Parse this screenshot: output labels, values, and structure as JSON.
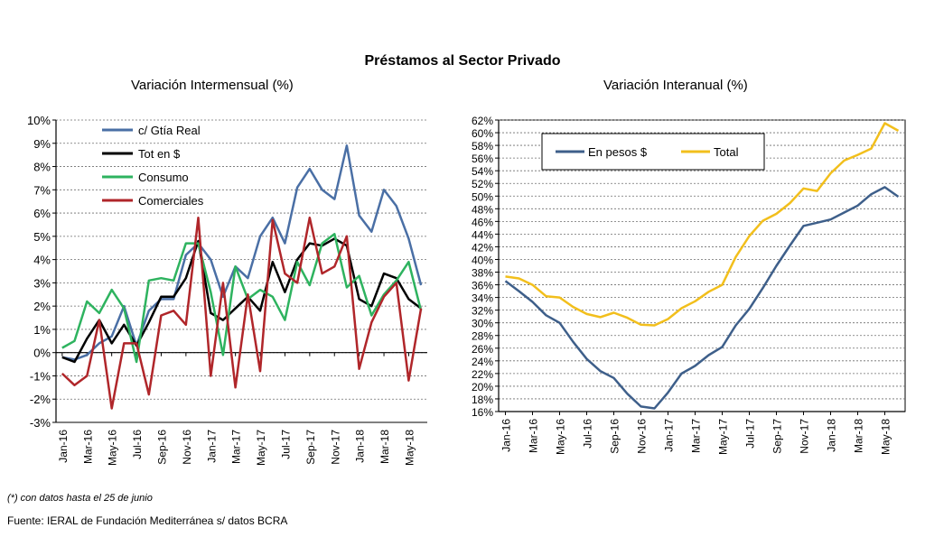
{
  "title": "Préstamos al Sector Privado",
  "note": "(*) con datos hasta el 25 de junio",
  "source": "Fuente: IERAL de Fundación Mediterránea s/ datos BCRA",
  "chart_data": [
    {
      "type": "line",
      "title": "Variación Intermensual (%)",
      "xlabel": "",
      "ylabel": "",
      "ylim": [
        -3,
        10
      ],
      "y_ticks": [
        "10%",
        "9%",
        "8%",
        "7%",
        "6%",
        "5%",
        "4%",
        "3%",
        "2%",
        "1%",
        "0%",
        "-1%",
        "-2%",
        "-3%"
      ],
      "x": [
        "Jan-16",
        "Feb-16",
        "Mar-16",
        "Apr-16",
        "May-16",
        "Jun-16",
        "Jul-16",
        "Aug-16",
        "Sep-16",
        "Oct-16",
        "Nov-16",
        "Dec-16",
        "Jan-17",
        "Feb-17",
        "Mar-17",
        "Apr-17",
        "May-17",
        "Jun-17",
        "Jul-17",
        "Aug-17",
        "Sep-17",
        "Oct-17",
        "Nov-17",
        "Dec-17",
        "Jan-18",
        "Feb-18",
        "Mar-18",
        "Apr-18",
        "May-18",
        "Jun-18"
      ],
      "x_tick_labels": [
        "Jan-16",
        "Mar-16",
        "May-16",
        "Jul-16",
        "Sep-16",
        "Nov-16",
        "Jan-17",
        "Mar-17",
        "May-17",
        "Jul-17",
        "Sep-17",
        "Nov-17",
        "Jan-18",
        "Mar-18",
        "May-18"
      ],
      "grid": true,
      "legend_position": "top-left",
      "series": [
        {
          "name": "c/ Gtía Real",
          "color": "#4a6fa5",
          "values": [
            -0.2,
            -0.3,
            -0.1,
            0.4,
            0.7,
            2.0,
            0.3,
            1.8,
            2.3,
            2.3,
            4.2,
            4.7,
            4.0,
            2.4,
            3.7,
            3.2,
            5.0,
            5.8,
            4.7,
            7.1,
            7.9,
            7.0,
            6.6,
            8.9,
            5.9,
            5.2,
            7.0,
            6.3,
            4.9,
            2.9
          ]
        },
        {
          "name": "Tot en $",
          "color": "#000000",
          "values": [
            -0.2,
            -0.4,
            0.6,
            1.4,
            0.4,
            1.2,
            0.3,
            1.3,
            2.4,
            2.4,
            3.2,
            4.8,
            1.7,
            1.4,
            1.9,
            2.4,
            1.8,
            3.9,
            2.6,
            4.0,
            4.7,
            4.6,
            4.9,
            4.6,
            2.3,
            2.0,
            3.4,
            3.2,
            2.3,
            1.9
          ]
        },
        {
          "name": "Consumo",
          "color": "#2eb35f",
          "values": [
            0.2,
            0.5,
            2.2,
            1.7,
            2.7,
            1.9,
            -0.4,
            3.1,
            3.2,
            3.1,
            4.7,
            4.7,
            2.6,
            -0.1,
            3.7,
            2.3,
            2.7,
            2.4,
            1.4,
            3.9,
            2.9,
            4.7,
            5.1,
            2.8,
            3.3,
            1.6,
            2.5,
            3.1,
            3.9,
            1.8
          ]
        },
        {
          "name": "Comerciales",
          "color": "#b0262a",
          "values": [
            -0.9,
            -1.4,
            -1.0,
            1.4,
            -2.4,
            0.4,
            0.4,
            -1.8,
            1.6,
            1.8,
            1.2,
            5.8,
            -1.0,
            3.0,
            -1.5,
            2.5,
            -0.8,
            5.7,
            3.4,
            3.0,
            5.8,
            3.4,
            3.7,
            5.0,
            -0.7,
            1.3,
            2.4,
            3.0,
            -1.2,
            1.9
          ]
        }
      ]
    },
    {
      "type": "line",
      "title": "Variación Interanual (%)",
      "xlabel": "",
      "ylabel": "",
      "ylim": [
        16,
        62
      ],
      "y_ticks": [
        "62%",
        "60%",
        "58%",
        "56%",
        "54%",
        "52%",
        "50%",
        "48%",
        "46%",
        "44%",
        "42%",
        "40%",
        "38%",
        "36%",
        "34%",
        "32%",
        "30%",
        "28%",
        "26%",
        "24%",
        "22%",
        "20%",
        "18%",
        "16%"
      ],
      "x": [
        "Jan-16",
        "Feb-16",
        "Mar-16",
        "Apr-16",
        "May-16",
        "Jun-16",
        "Jul-16",
        "Aug-16",
        "Sep-16",
        "Oct-16",
        "Nov-16",
        "Dec-16",
        "Jan-17",
        "Feb-17",
        "Mar-17",
        "Apr-17",
        "May-17",
        "Jun-17",
        "Jul-17",
        "Aug-17",
        "Sep-17",
        "Oct-17",
        "Nov-17",
        "Dec-17",
        "Jan-18",
        "Feb-18",
        "Mar-18",
        "Apr-18",
        "May-18",
        "Jun-18"
      ],
      "x_tick_labels": [
        "Jan-16",
        "Mar-16",
        "May-16",
        "Jul-16",
        "Sep-16",
        "Nov-16",
        "Jan-17",
        "Mar-17",
        "May-17",
        "Jul-17",
        "Sep-17",
        "Nov-17",
        "Jan-18",
        "Mar-18",
        "May-18"
      ],
      "grid": true,
      "legend_position": "top-left",
      "series": [
        {
          "name": "En pesos $",
          "color": "#3e5f8a",
          "values": [
            36.6,
            35.0,
            33.3,
            31.2,
            30.0,
            27.0,
            24.3,
            22.4,
            21.3,
            18.8,
            16.8,
            16.5,
            19.0,
            22.0,
            23.2,
            24.9,
            26.2,
            29.6,
            32.2,
            35.5,
            39.0,
            42.2,
            45.3,
            45.8,
            46.3,
            47.4,
            48.5,
            50.3,
            51.4,
            49.9
          ]
        },
        {
          "name": "Total",
          "color": "#f2bf1c",
          "values": [
            37.3,
            37.0,
            36.0,
            34.2,
            34.0,
            32.5,
            31.4,
            30.9,
            31.6,
            30.8,
            29.7,
            29.6,
            30.6,
            32.3,
            33.4,
            34.9,
            36.0,
            40.4,
            43.7,
            46.1,
            47.2,
            48.9,
            51.2,
            50.8,
            53.6,
            55.6,
            56.5,
            57.5,
            61.5,
            60.3
          ]
        }
      ]
    }
  ]
}
